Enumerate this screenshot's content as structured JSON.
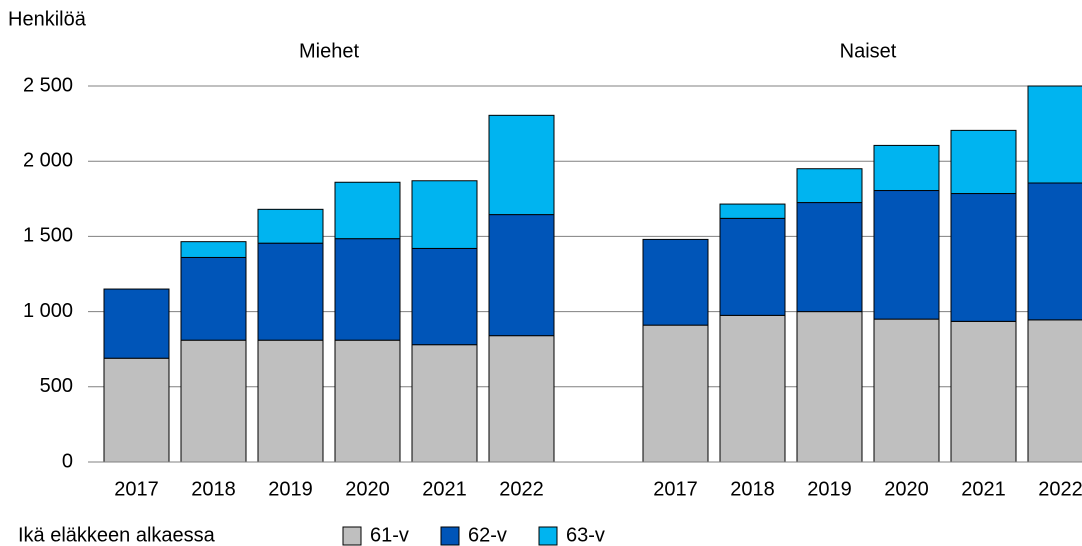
{
  "chart_data": {
    "type": "stacked-bar",
    "y_label": "Henkilöä",
    "group_labels": [
      "Miehet",
      "Naiset"
    ],
    "legend_title": "Ikä eläkkeen alkaessa",
    "categories": [
      "2017",
      "2018",
      "2019",
      "2020",
      "2021",
      "2022",
      null,
      "2017",
      "2018",
      "2019",
      "2020",
      "2021",
      "2022"
    ],
    "series": [
      {
        "name": "61-v",
        "color": "#bfbfbf",
        "values": [
          690,
          810,
          810,
          810,
          780,
          840,
          null,
          910,
          975,
          1000,
          950,
          935,
          945
        ]
      },
      {
        "name": "62-v",
        "color": "#0055b8",
        "values": [
          460,
          550,
          645,
          675,
          640,
          805,
          null,
          570,
          645,
          725,
          855,
          850,
          910
        ]
      },
      {
        "name": "63-v",
        "color": "#00b4f0",
        "values": [
          0,
          105,
          225,
          375,
          450,
          660,
          null,
          0,
          95,
          225,
          300,
          420,
          645
        ]
      }
    ],
    "ylim": [
      0,
      2500
    ],
    "yticks": [
      0,
      500,
      {
        "value": 1000,
        "label": "1 000"
      },
      {
        "value": 1500,
        "label": "1 500"
      },
      {
        "value": 2000,
        "label": "2 000"
      },
      {
        "value": 2500,
        "label": "2 500"
      }
    ],
    "grid": true
  }
}
